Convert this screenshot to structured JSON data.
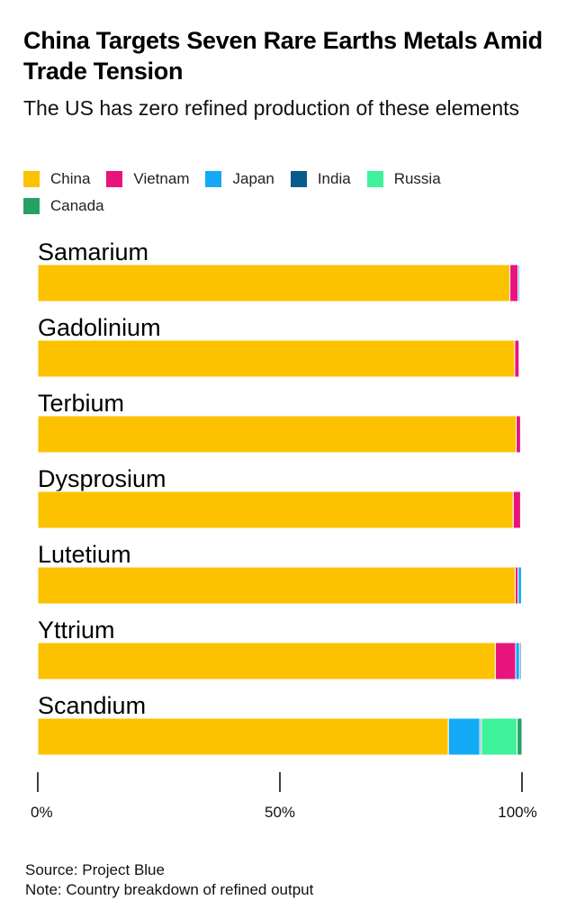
{
  "header": {
    "title": "China Targets Seven Rare Earths Metals Amid Trade Tension",
    "subtitle": "The US has zero refined production of these elements"
  },
  "footer": {
    "source": "Source: Project Blue",
    "note": "Note: Country breakdown of refined output"
  },
  "colors": {
    "China": "#fcc200",
    "Vietnam": "#e8147d",
    "Japan": "#14aaf5",
    "India": "#0b5a8c",
    "Russia": "#3ef29a",
    "Canada": "#27a063"
  },
  "chart_data": {
    "type": "bar",
    "orientation": "horizontal",
    "stacked": true,
    "categories": [
      "Samarium",
      "Gadolinium",
      "Terbium",
      "Dysprosium",
      "Lutetium",
      "Yttrium",
      "Scandium"
    ],
    "series": [
      {
        "name": "China",
        "values": [
          97.5,
          98.5,
          98.8,
          98.2,
          98.6,
          94.5,
          84.8
        ]
      },
      {
        "name": "Vietnam",
        "values": [
          1.7,
          0.9,
          0.9,
          1.5,
          0.6,
          4.2,
          0
        ]
      },
      {
        "name": "Japan",
        "values": [
          0.3,
          0,
          0,
          0,
          0.7,
          0.8,
          6.5
        ]
      },
      {
        "name": "India",
        "values": [
          0,
          0,
          0,
          0,
          0,
          0.3,
          0.3
        ]
      },
      {
        "name": "Russia",
        "values": [
          0,
          0,
          0,
          0,
          0,
          0,
          7.4
        ]
      },
      {
        "name": "Canada",
        "values": [
          0,
          0,
          0,
          0,
          0,
          0,
          1.0
        ]
      }
    ],
    "xlim": [
      0,
      100
    ],
    "xticks": [
      "0%",
      "50%",
      "100%"
    ],
    "legend_position": "top",
    "grid": false
  }
}
